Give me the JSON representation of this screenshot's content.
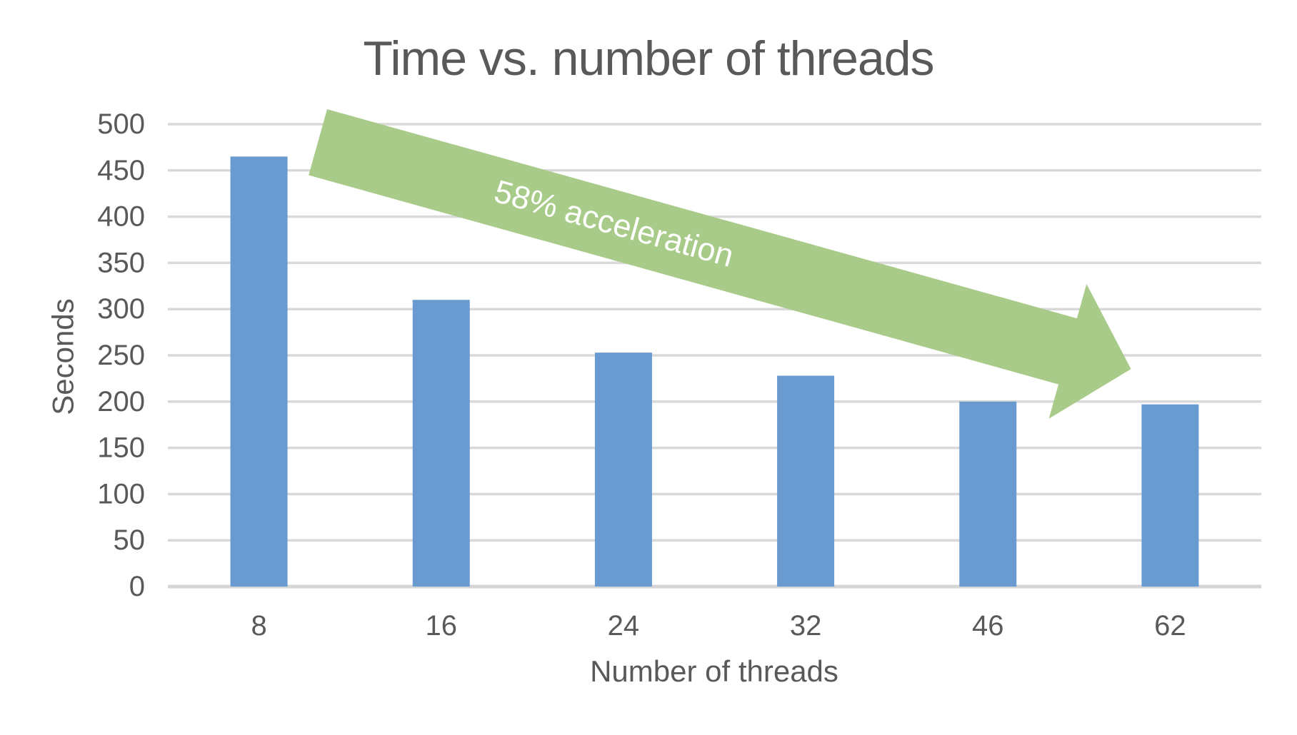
{
  "chart_data": {
    "type": "bar",
    "title": "Time vs. number of threads",
    "categories": [
      "8",
      "16",
      "24",
      "32",
      "46",
      "62"
    ],
    "values": [
      465,
      310,
      253,
      228,
      200,
      197
    ],
    "xlabel": "Number of threads",
    "ylabel": "Seconds",
    "ylim": [
      0,
      500
    ],
    "ytick_step": 50,
    "grid": true,
    "legend": "none",
    "bar_color": "#699ad0",
    "gridline_color": "#d9d9d9",
    "axisline_color": "#d6d6d6",
    "text_color": "#595959",
    "annotation": {
      "label": "58% acceleration",
      "arrow_color": "#a9cb8a",
      "text_color": "#ffffff"
    }
  }
}
